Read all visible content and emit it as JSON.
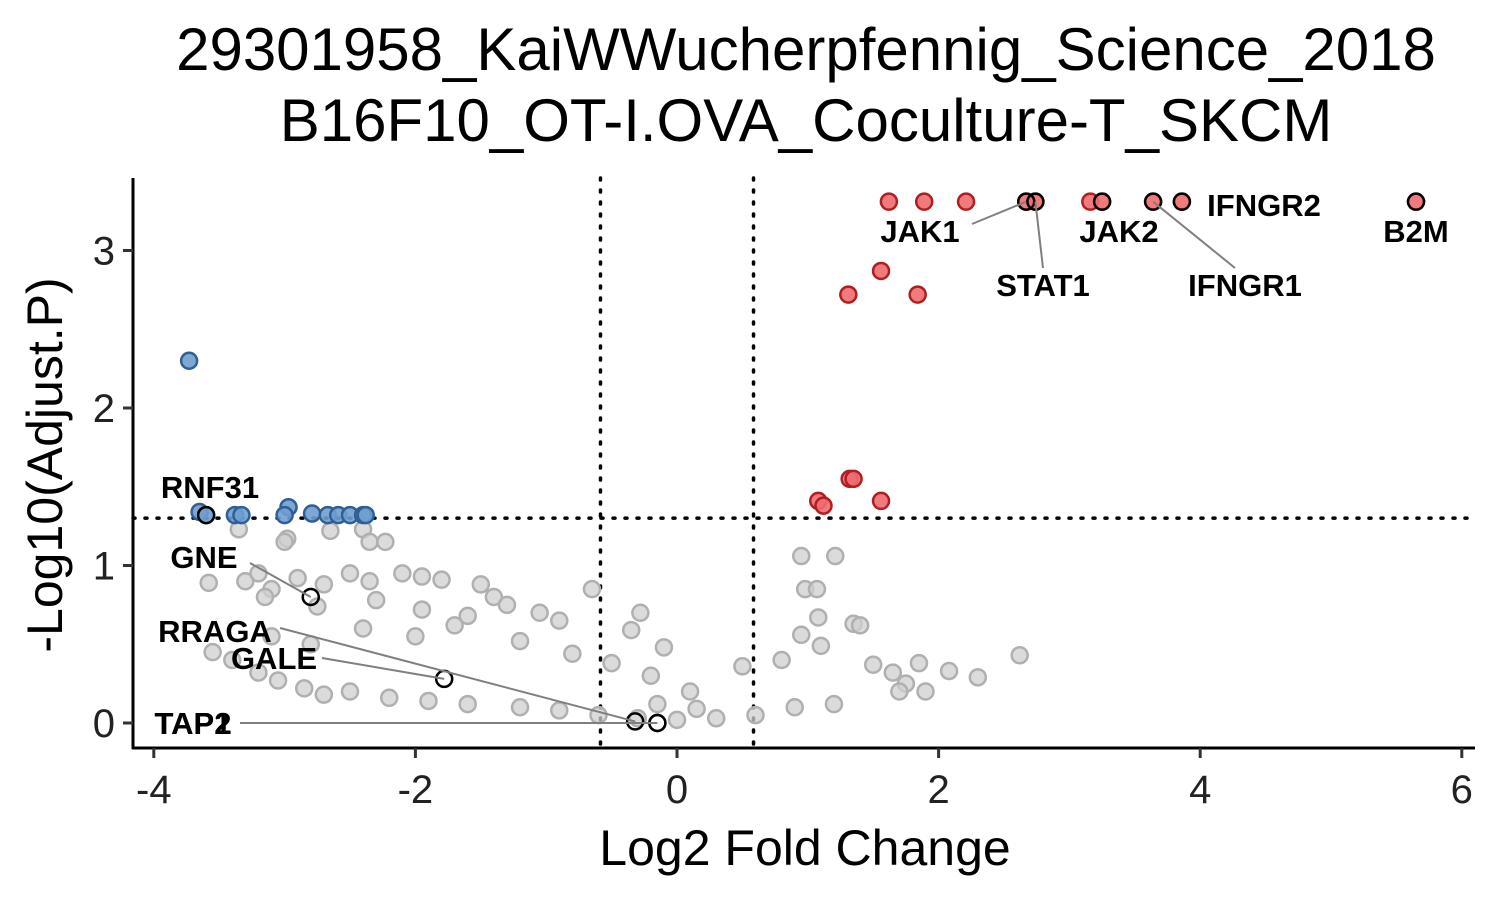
{
  "chart_data": {
    "type": "scatter",
    "title": [
      "29301958_KaiWWucherpfennig_Science_2018",
      "B16F10_OT-I.OVA_Coculture-T_SKCM"
    ],
    "xlabel": "Log2 Fold Change",
    "ylabel": "-Log10(Adjust.P)",
    "xlim": [
      -4.2,
      6.05
    ],
    "ylim": [
      -0.15,
      3.45
    ],
    "xticks": [
      -4,
      -2,
      0,
      2,
      4,
      6
    ],
    "yticks": [
      0,
      1,
      2,
      3
    ],
    "grid": false,
    "thresholds": {
      "x": [
        -0.585,
        0.585
      ],
      "y": 1.301
    },
    "colors": {
      "up": "#E41A1C",
      "down": "#377EB8",
      "ns": "#BEBEBE"
    },
    "series": [
      {
        "group": "up",
        "points": [
          [
            1.62,
            3.31
          ],
          [
            1.89,
            3.31
          ],
          [
            2.21,
            3.31
          ],
          [
            2.67,
            3.31
          ],
          [
            2.74,
            3.31
          ],
          [
            3.16,
            3.31
          ],
          [
            3.25,
            3.31
          ],
          [
            3.64,
            3.31
          ],
          [
            3.86,
            3.31
          ],
          [
            5.65,
            3.31
          ],
          [
            1.56,
            2.87
          ],
          [
            1.31,
            2.72
          ],
          [
            1.84,
            2.72
          ],
          [
            1.32,
            1.55
          ],
          [
            1.35,
            1.55
          ],
          [
            1.08,
            1.41
          ],
          [
            1.12,
            1.38
          ],
          [
            1.56,
            1.41
          ]
        ]
      },
      {
        "group": "down",
        "points": [
          [
            -3.73,
            2.3
          ],
          [
            -3.65,
            1.34
          ],
          [
            -3.6,
            1.32
          ],
          [
            -3.38,
            1.32
          ],
          [
            -3.33,
            1.32
          ],
          [
            -2.97,
            1.37
          ],
          [
            -3.0,
            1.32
          ],
          [
            -2.79,
            1.33
          ],
          [
            -2.67,
            1.32
          ],
          [
            -2.59,
            1.32
          ],
          [
            -2.5,
            1.32
          ],
          [
            -2.4,
            1.32
          ],
          [
            -2.38,
            1.32
          ]
        ]
      },
      {
        "group": "ns",
        "points": [
          [
            -3.35,
            1.23
          ],
          [
            -2.98,
            1.17
          ],
          [
            -2.65,
            1.22
          ],
          [
            -2.4,
            1.23
          ],
          [
            -2.35,
            1.15
          ],
          [
            -2.23,
            1.15
          ],
          [
            -3.0,
            1.15
          ],
          [
            -3.58,
            0.89
          ],
          [
            -3.3,
            0.9
          ],
          [
            -3.2,
            0.95
          ],
          [
            -3.1,
            0.85
          ],
          [
            -2.9,
            0.92
          ],
          [
            -2.7,
            0.88
          ],
          [
            -2.5,
            0.95
          ],
          [
            -2.35,
            0.9
          ],
          [
            -2.1,
            0.95
          ],
          [
            -1.95,
            0.93
          ],
          [
            -1.8,
            0.91
          ],
          [
            -1.5,
            0.88
          ],
          [
            -1.4,
            0.8
          ],
          [
            -1.3,
            0.75
          ],
          [
            -1.05,
            0.7
          ],
          [
            -0.9,
            0.65
          ],
          [
            -0.65,
            0.85
          ],
          [
            -0.28,
            0.7
          ],
          [
            -0.35,
            0.59
          ],
          [
            -0.1,
            0.48
          ],
          [
            0.95,
            1.06
          ],
          [
            1.21,
            1.06
          ],
          [
            0.98,
            0.85
          ],
          [
            1.07,
            0.85
          ],
          [
            1.08,
            0.67
          ],
          [
            0.95,
            0.56
          ],
          [
            1.35,
            0.63
          ],
          [
            1.4,
            0.62
          ],
          [
            1.5,
            0.37
          ],
          [
            1.65,
            0.32
          ],
          [
            1.75,
            0.25
          ],
          [
            1.85,
            0.38
          ],
          [
            1.7,
            0.2
          ],
          [
            1.9,
            0.2
          ],
          [
            2.08,
            0.33
          ],
          [
            2.3,
            0.29
          ],
          [
            2.62,
            0.43
          ],
          [
            1.1,
            0.49
          ],
          [
            0.8,
            0.4
          ],
          [
            0.5,
            0.36
          ],
          [
            -3.55,
            0.45
          ],
          [
            -3.4,
            0.4
          ],
          [
            -3.2,
            0.32
          ],
          [
            -3.05,
            0.27
          ],
          [
            -2.85,
            0.22
          ],
          [
            -2.7,
            0.18
          ],
          [
            -2.5,
            0.2
          ],
          [
            -2.2,
            0.16
          ],
          [
            -1.9,
            0.14
          ],
          [
            -1.6,
            0.12
          ],
          [
            -1.2,
            0.1
          ],
          [
            -0.9,
            0.08
          ],
          [
            -0.6,
            0.05
          ],
          [
            -0.3,
            0.03
          ],
          [
            0.0,
            0.02
          ],
          [
            0.3,
            0.03
          ],
          [
            0.6,
            0.05
          ],
          [
            0.9,
            0.1
          ],
          [
            1.2,
            0.12
          ],
          [
            -3.1,
            0.55
          ],
          [
            -2.8,
            0.5
          ],
          [
            -2.4,
            0.6
          ],
          [
            -2.0,
            0.55
          ],
          [
            -1.7,
            0.62
          ],
          [
            -1.2,
            0.52
          ],
          [
            -0.8,
            0.44
          ],
          [
            -0.5,
            0.38
          ],
          [
            -0.2,
            0.3
          ],
          [
            0.1,
            0.2
          ],
          [
            -3.15,
            0.8
          ],
          [
            -2.75,
            0.74
          ],
          [
            -2.3,
            0.78
          ],
          [
            -1.95,
            0.72
          ],
          [
            -1.6,
            0.68
          ],
          [
            -0.15,
            0.12
          ],
          [
            0.15,
            0.09
          ]
        ]
      }
    ],
    "highlighted": [
      {
        "label": "JAK1",
        "x": 2.67,
        "y": 3.31
      },
      {
        "label": "STAT1",
        "x": 2.74,
        "y": 3.31
      },
      {
        "label": "JAK2",
        "x": 3.25,
        "y": 3.31
      },
      {
        "label": "IFNGR1",
        "x": 3.64,
        "y": 3.31
      },
      {
        "label": "IFNGR2",
        "x": 3.86,
        "y": 3.31
      },
      {
        "label": "B2M",
        "x": 5.65,
        "y": 3.31
      },
      {
        "label": "RNF31",
        "x": -3.6,
        "y": 1.32
      },
      {
        "label": "GNE",
        "x": -2.8,
        "y": 0.8
      },
      {
        "label": "RRAGA",
        "x": -0.32,
        "y": 0.01
      },
      {
        "label": "GALE",
        "x": -1.78,
        "y": 0.28
      },
      {
        "label": "TAP1",
        "x": -0.15,
        "y": 0.0
      },
      {
        "label": "TAP2",
        "x": -0.15,
        "y": 0.0
      }
    ]
  }
}
